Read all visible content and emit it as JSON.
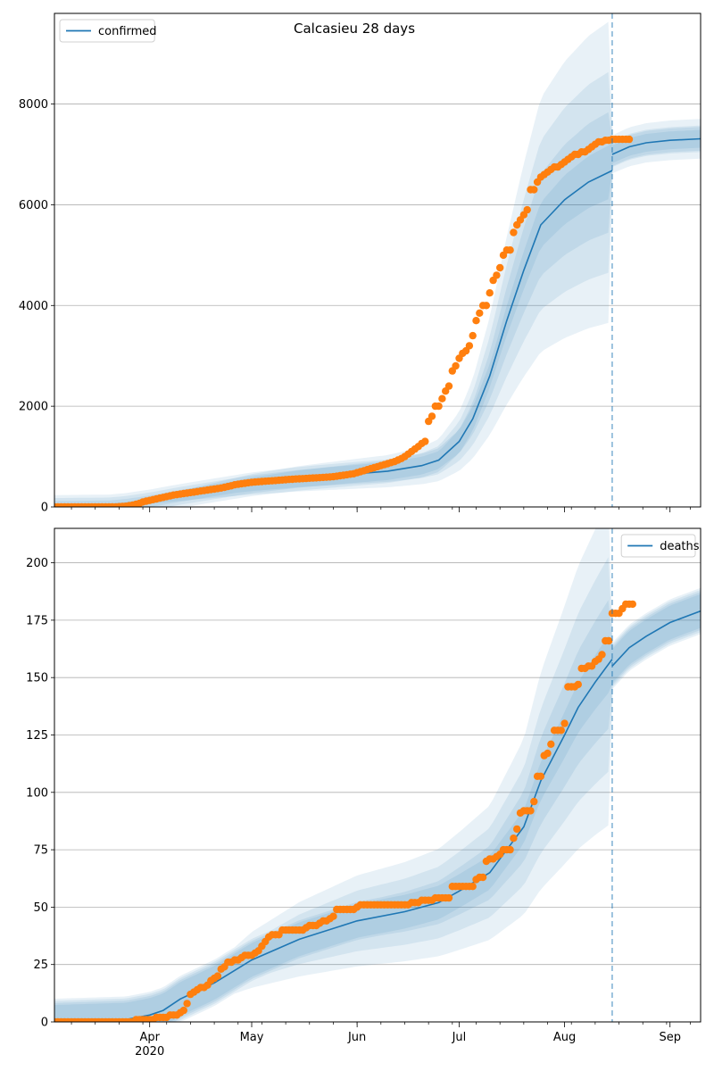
{
  "figure_title": "Calcasieu 28 days",
  "chart_data": [
    {
      "type": "line",
      "title": "",
      "legend": {
        "entries": [
          "confirmed"
        ],
        "placement": "top-left"
      },
      "xlabel": "",
      "ylabel": "",
      "x_tick_labels": [
        {
          "date": "2020-04-01",
          "label": "Apr",
          "sublabel": "2020"
        },
        {
          "date": "2020-05-01",
          "label": "May",
          "sublabel": ""
        },
        {
          "date": "2020-06-01",
          "label": "Jun",
          "sublabel": ""
        },
        {
          "date": "2020-07-01",
          "label": "Jul",
          "sublabel": ""
        },
        {
          "date": "2020-08-01",
          "label": "Aug",
          "sublabel": ""
        },
        {
          "date": "2020-09-01",
          "label": "Sep",
          "sublabel": ""
        }
      ],
      "x_tick_labels_visible": false,
      "xlim": [
        "2020-03-04",
        "2020-09-10"
      ],
      "ylim": [
        0,
        9800
      ],
      "y_ticks": [
        0,
        2000,
        4000,
        6000,
        8000
      ],
      "grid": "y",
      "forecast_start": "2020-08-15",
      "colors": {
        "model": "#1f77b4",
        "observed": "#ff7f0e",
        "band": "#1f77b4"
      },
      "series": [
        {
          "name": "confirmed",
          "kind": "model_line",
          "points": [
            [
              "2020-03-04",
              0
            ],
            [
              "2020-03-20",
              10
            ],
            [
              "2020-03-25",
              40
            ],
            [
              "2020-04-01",
              110
            ],
            [
              "2020-04-10",
              220
            ],
            [
              "2020-04-20",
              330
            ],
            [
              "2020-05-01",
              450
            ],
            [
              "2020-05-15",
              560
            ],
            [
              "2020-06-01",
              660
            ],
            [
              "2020-06-10",
              710
            ],
            [
              "2020-06-20",
              820
            ],
            [
              "2020-06-25",
              930
            ],
            [
              "2020-07-01",
              1300
            ],
            [
              "2020-07-05",
              1750
            ],
            [
              "2020-07-10",
              2600
            ],
            [
              "2020-07-15",
              3700
            ],
            [
              "2020-07-20",
              4700
            ],
            [
              "2020-07-25",
              5600
            ],
            [
              "2020-08-01",
              6100
            ],
            [
              "2020-08-08",
              6450
            ],
            [
              "2020-08-15",
              6680
            ]
          ]
        },
        {
          "name": "confirmed-forecast",
          "kind": "model_line",
          "points": [
            [
              "2020-08-15",
              7000
            ],
            [
              "2020-08-20",
              7150
            ],
            [
              "2020-08-25",
              7230
            ],
            [
              "2020-09-01",
              7280
            ],
            [
              "2020-09-10",
              7310
            ]
          ]
        },
        {
          "name": "confirmed-observed",
          "kind": "observed_points",
          "x_start": "2020-03-04",
          "values": [
            0,
            0,
            0,
            0,
            0,
            0,
            0,
            0,
            0,
            0,
            0,
            0,
            0,
            0,
            0,
            0,
            0,
            0,
            0,
            5,
            10,
            15,
            25,
            35,
            55,
            70,
            100,
            115,
            130,
            145,
            160,
            175,
            190,
            205,
            220,
            235,
            245,
            255,
            265,
            275,
            285,
            295,
            305,
            315,
            325,
            335,
            345,
            355,
            365,
            375,
            390,
            405,
            420,
            440,
            450,
            460,
            470,
            480,
            490,
            495,
            500,
            505,
            510,
            515,
            520,
            525,
            530,
            535,
            540,
            545,
            550,
            555,
            558,
            562,
            566,
            570,
            574,
            578,
            582,
            586,
            590,
            595,
            600,
            610,
            620,
            630,
            640,
            650,
            660,
            680,
            700,
            720,
            740,
            760,
            780,
            800,
            820,
            840,
            860,
            880,
            900,
            930,
            960,
            1000,
            1050,
            1100,
            1150,
            1200,
            1260,
            1300,
            1700,
            1800,
            2000,
            2000,
            2150,
            2300,
            2400,
            2700,
            2800,
            2950,
            3050,
            3100,
            3200,
            3400,
            3700,
            3850,
            4000,
            4000,
            4250,
            4500,
            4600,
            4750,
            5000,
            5100,
            5100,
            5450,
            5600,
            5700,
            5800,
            5900,
            6300,
            6300,
            6450,
            6550,
            6600,
            6650,
            6700,
            6750,
            6750,
            6800,
            6850,
            6900,
            6950,
            7000,
            7000,
            7050,
            7050,
            7100,
            7150,
            7200,
            7250,
            7250,
            7280,
            7280,
            7300,
            7300,
            7300,
            7300,
            7300,
            7300
          ]
        }
      ]
    },
    {
      "type": "line",
      "title": "",
      "legend": {
        "entries": [
          "deaths"
        ],
        "placement": "top-right"
      },
      "xlabel": "",
      "ylabel": "",
      "x_tick_labels": [
        {
          "date": "2020-04-01",
          "label": "Apr",
          "sublabel": "2020"
        },
        {
          "date": "2020-05-01",
          "label": "May",
          "sublabel": ""
        },
        {
          "date": "2020-06-01",
          "label": "Jun",
          "sublabel": ""
        },
        {
          "date": "2020-07-01",
          "label": "Jul",
          "sublabel": ""
        },
        {
          "date": "2020-08-01",
          "label": "Aug",
          "sublabel": ""
        },
        {
          "date": "2020-09-01",
          "label": "Sep",
          "sublabel": ""
        }
      ],
      "x_tick_labels_visible": true,
      "xlim": [
        "2020-03-04",
        "2020-09-10"
      ],
      "ylim": [
        0,
        215
      ],
      "y_ticks": [
        0,
        25,
        50,
        75,
        100,
        125,
        150,
        175,
        200
      ],
      "grid": "y",
      "forecast_start": "2020-08-15",
      "colors": {
        "model": "#1f77b4",
        "observed": "#ff7f0e",
        "band": "#1f77b4"
      },
      "series": [
        {
          "name": "deaths",
          "kind": "model_line",
          "points": [
            [
              "2020-03-04",
              0
            ],
            [
              "2020-03-25",
              1
            ],
            [
              "2020-04-01",
              3
            ],
            [
              "2020-04-05",
              5
            ],
            [
              "2020-04-10",
              10
            ],
            [
              "2020-04-20",
              17
            ],
            [
              "2020-05-01",
              27
            ],
            [
              "2020-05-15",
              36
            ],
            [
              "2020-06-01",
              44
            ],
            [
              "2020-06-15",
              48
            ],
            [
              "2020-06-25",
              52
            ],
            [
              "2020-07-01",
              57
            ],
            [
              "2020-07-10",
              65
            ],
            [
              "2020-07-20",
              85
            ],
            [
              "2020-07-25",
              105
            ],
            [
              "2020-08-01",
              125
            ],
            [
              "2020-08-05",
              137
            ],
            [
              "2020-08-10",
              148
            ],
            [
              "2020-08-15",
              158
            ]
          ]
        },
        {
          "name": "deaths-forecast",
          "kind": "model_line",
          "points": [
            [
              "2020-08-15",
              155
            ],
            [
              "2020-08-20",
              163
            ],
            [
              "2020-08-25",
              168
            ],
            [
              "2020-09-01",
              174
            ],
            [
              "2020-09-10",
              179
            ]
          ]
        },
        {
          "name": "deaths-observed",
          "kind": "observed_points",
          "x_start": "2020-03-04",
          "values": [
            0,
            0,
            0,
            0,
            0,
            0,
            0,
            0,
            0,
            0,
            0,
            0,
            0,
            0,
            0,
            0,
            0,
            0,
            0,
            0,
            0,
            0,
            0,
            0,
            1,
            1,
            1,
            1,
            1,
            1,
            2,
            2,
            2,
            2,
            3,
            3,
            3,
            4,
            5,
            8,
            12,
            13,
            14,
            15,
            15,
            16,
            18,
            19,
            20,
            23,
            24,
            26,
            26,
            27,
            27,
            28,
            29,
            29,
            29,
            30,
            31,
            33,
            35,
            37,
            38,
            38,
            38,
            40,
            40,
            40,
            40,
            40,
            40,
            40,
            41,
            42,
            42,
            42,
            43,
            44,
            44,
            45,
            46,
            49,
            49,
            49,
            49,
            49,
            49,
            50,
            51,
            51,
            51,
            51,
            51,
            51,
            51,
            51,
            51,
            51,
            51,
            51,
            51,
            51,
            51,
            52,
            52,
            52,
            53,
            53,
            53,
            53,
            54,
            54,
            54,
            54,
            54,
            59,
            59,
            59,
            59,
            59,
            59,
            59,
            62,
            63,
            63,
            70,
            71,
            71,
            72,
            73,
            75,
            75,
            75,
            80,
            84,
            91,
            92,
            92,
            92,
            96,
            107,
            107,
            116,
            117,
            121,
            127,
            127,
            127,
            130,
            146,
            146,
            146,
            147,
            154,
            154,
            155,
            155,
            157,
            158,
            160,
            166,
            166,
            178,
            178,
            178,
            180,
            182,
            182,
            182
          ]
        }
      ]
    }
  ]
}
